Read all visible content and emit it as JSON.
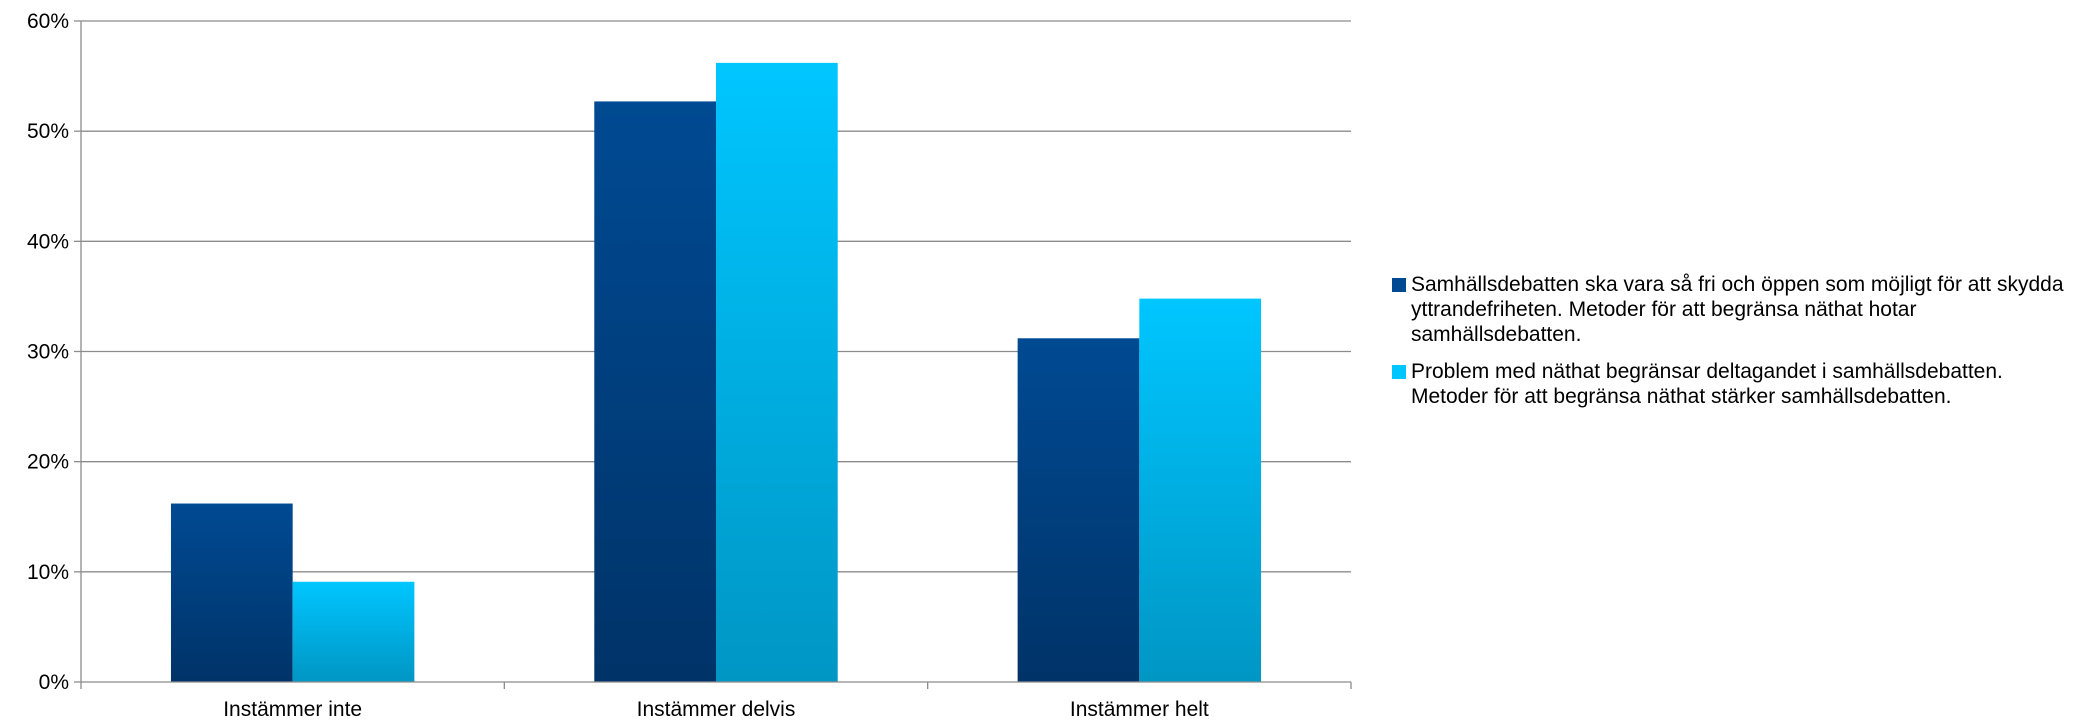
{
  "chart_data": {
    "type": "bar",
    "title": "",
    "xlabel": "",
    "ylabel": "",
    "categories": [
      "Instämmer inte",
      "Instämmer delvis",
      "Instämmer helt"
    ],
    "series": [
      {
        "name": "Samhällsdebatten ska vara så fri och öppen som möjligt för att skydda yttrandefriheten. Metoder för att begränsa näthat hotar samhällsdebatten.",
        "values": [
          16.2,
          52.7,
          31.2
        ],
        "color": "#004a93"
      },
      {
        "name": "Problem med näthat begränsar deltagandet i samhällsdebatten. Metoder för att begränsa näthat stärker samhällsdebatten.",
        "values": [
          9.1,
          56.2,
          34.8
        ],
        "color": "#00c6ff"
      }
    ],
    "ylim": [
      0,
      60
    ],
    "yticks": [
      "0%",
      "10%",
      "20%",
      "30%",
      "40%",
      "50%",
      "60%"
    ],
    "grid": true,
    "legend_position": "right"
  }
}
